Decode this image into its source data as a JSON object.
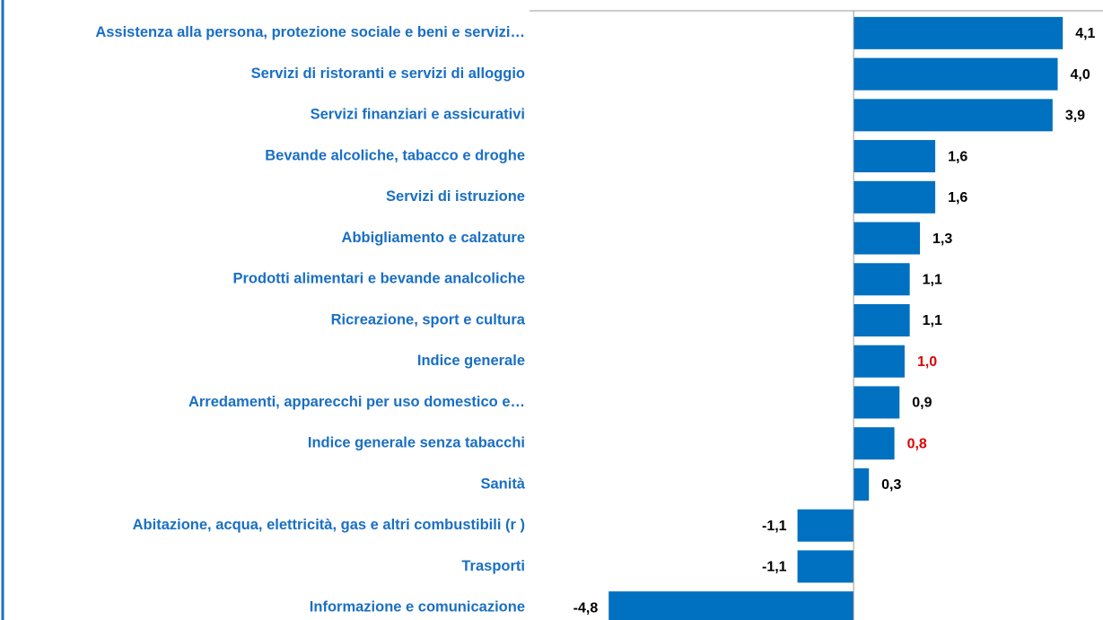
{
  "chart_data": {
    "type": "bar",
    "orientation": "horizontal",
    "categories": [
      "Assistenza alla persona, protezione sociale e beni e servizi…",
      "Servizi di ristoranti e servizi di alloggio",
      "Servizi finanziari e assicurativi",
      "Bevande alcoliche, tabacco e droghe",
      "Servizi di istruzione",
      "Abbigliamento e calzature",
      "Prodotti alimentari e bevande analcoliche",
      "Ricreazione, sport e cultura",
      "Indice generale",
      "Arredamenti, apparecchi per uso domestico e…",
      "Indice generale senza tabacchi",
      "Sanità",
      "Abitazione, acqua, elettricità, gas e altri combustibili (r )",
      "Trasporti",
      "Informazione e comunicazione"
    ],
    "values": [
      4.1,
      4.0,
      3.9,
      1.6,
      1.6,
      1.3,
      1.1,
      1.1,
      1.0,
      0.9,
      0.8,
      0.3,
      -1.1,
      -1.1,
      -4.8
    ],
    "value_labels": [
      "4,1",
      "4,0",
      "3,9",
      "1,6",
      "1,6",
      "1,3",
      "1,1",
      "1,1",
      "1,0",
      "0,9",
      "0,8",
      "0,3",
      "-1,1",
      "-1,1",
      "-4,8"
    ],
    "value_label_colors": [
      "#000000",
      "#000000",
      "#000000",
      "#000000",
      "#000000",
      "#000000",
      "#000000",
      "#000000",
      "#e00000",
      "#000000",
      "#e00000",
      "#000000",
      "#000000",
      "#000000",
      "#000000"
    ],
    "color": "#0070c0",
    "category_color": "#1a6fc4",
    "xlim": [
      -6,
      4.8
    ]
  }
}
